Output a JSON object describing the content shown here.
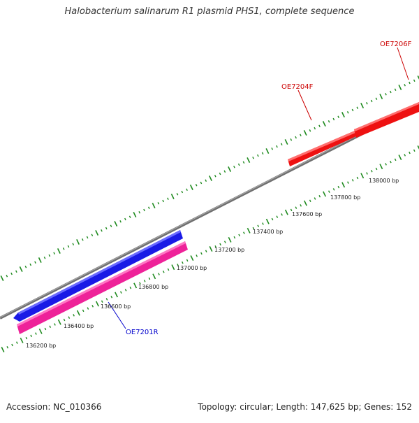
{
  "title": "Halobacterium salinarum R1 plasmid PHS1, complete sequence",
  "footer": {
    "accession_text": "Accession: NC_010366",
    "summary_text": "Topology: circular; Length: 147,625 bp; Genes: 152"
  },
  "colors": {
    "backbone": "#808080",
    "tick": "#1e8a1e",
    "forward_gene": "#ee1111",
    "reverse_gene_blue": "#1a1ae6",
    "reverse_gene_pink": "#ee2299",
    "label_red": "#cc0000",
    "label_blue": "#0000cc"
  },
  "scale_labels": [
    "136200 bp",
    "136400 bp",
    "136600 bp",
    "136800 bp",
    "137000 bp",
    "137200 bp",
    "137400 bp",
    "137600 bp",
    "137800 bp",
    "138000 bp"
  ],
  "gene_labels": {
    "oe7206f": "OE7206F",
    "oe7204f": "OE7204F",
    "oe7201r": "OE7201R"
  }
}
